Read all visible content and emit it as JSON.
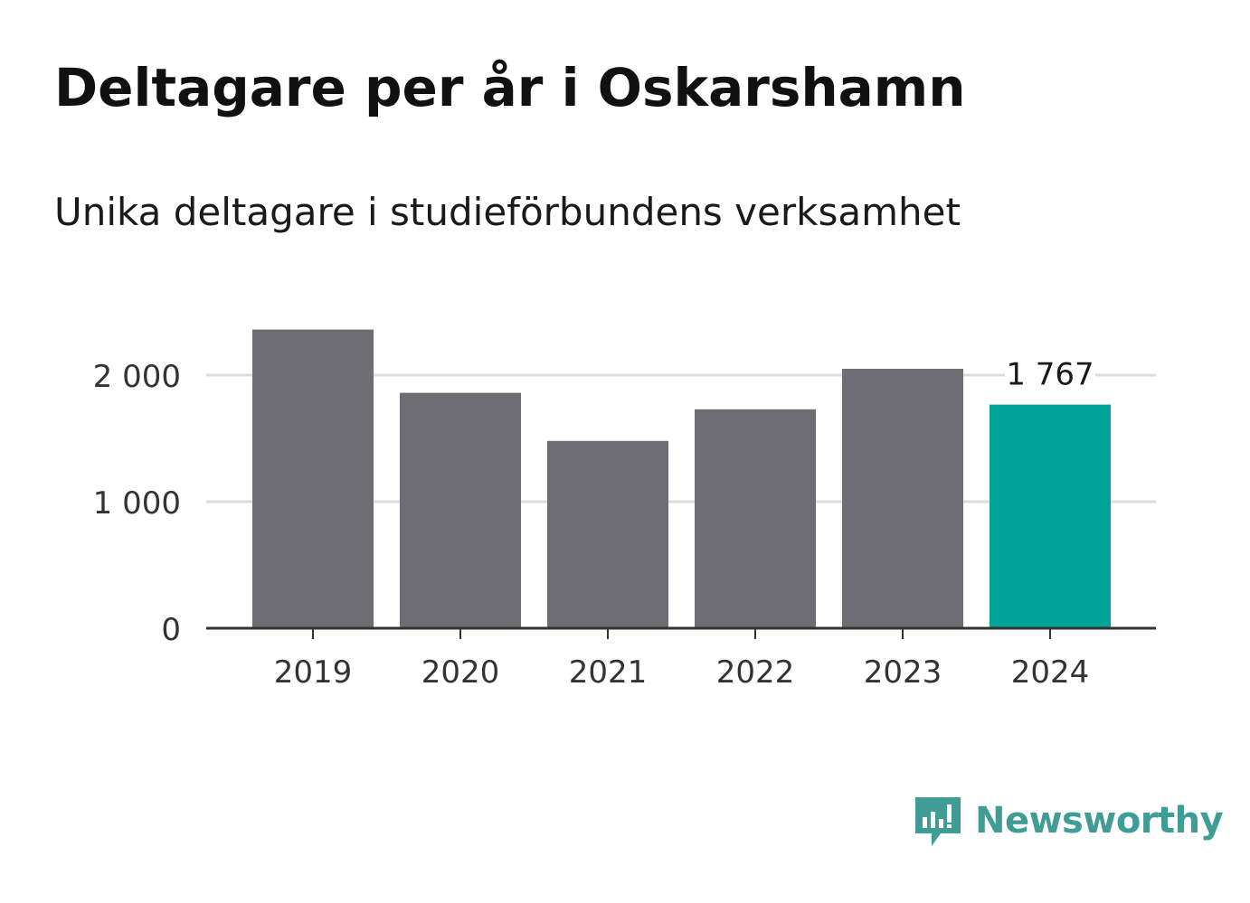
{
  "title": "Deltagare per år i Oskarshamn",
  "subtitle": "Unika deltagare i studieförbundens verksamhet",
  "chart_data": {
    "type": "bar",
    "categories": [
      "2019",
      "2020",
      "2021",
      "2022",
      "2023",
      "2024"
    ],
    "values": [
      2360,
      1860,
      1480,
      1730,
      2050,
      1767
    ],
    "ylim": [
      0,
      2500
    ],
    "yticks": [
      0,
      1000,
      2000
    ],
    "ytick_labels": [
      "0",
      "1 000",
      "2 000"
    ],
    "grid": true,
    "highlight_index": 5,
    "data_labels": [
      {
        "index": 5,
        "text": "1 767"
      }
    ],
    "colors": {
      "bar": "#6e6d73",
      "highlight": "#00a398",
      "grid": "#dddddd",
      "axis": "#333333"
    }
  },
  "brand": {
    "name": "Newsworthy",
    "icon": "newsworthy-logo-icon",
    "color": "#3f9d95"
  }
}
